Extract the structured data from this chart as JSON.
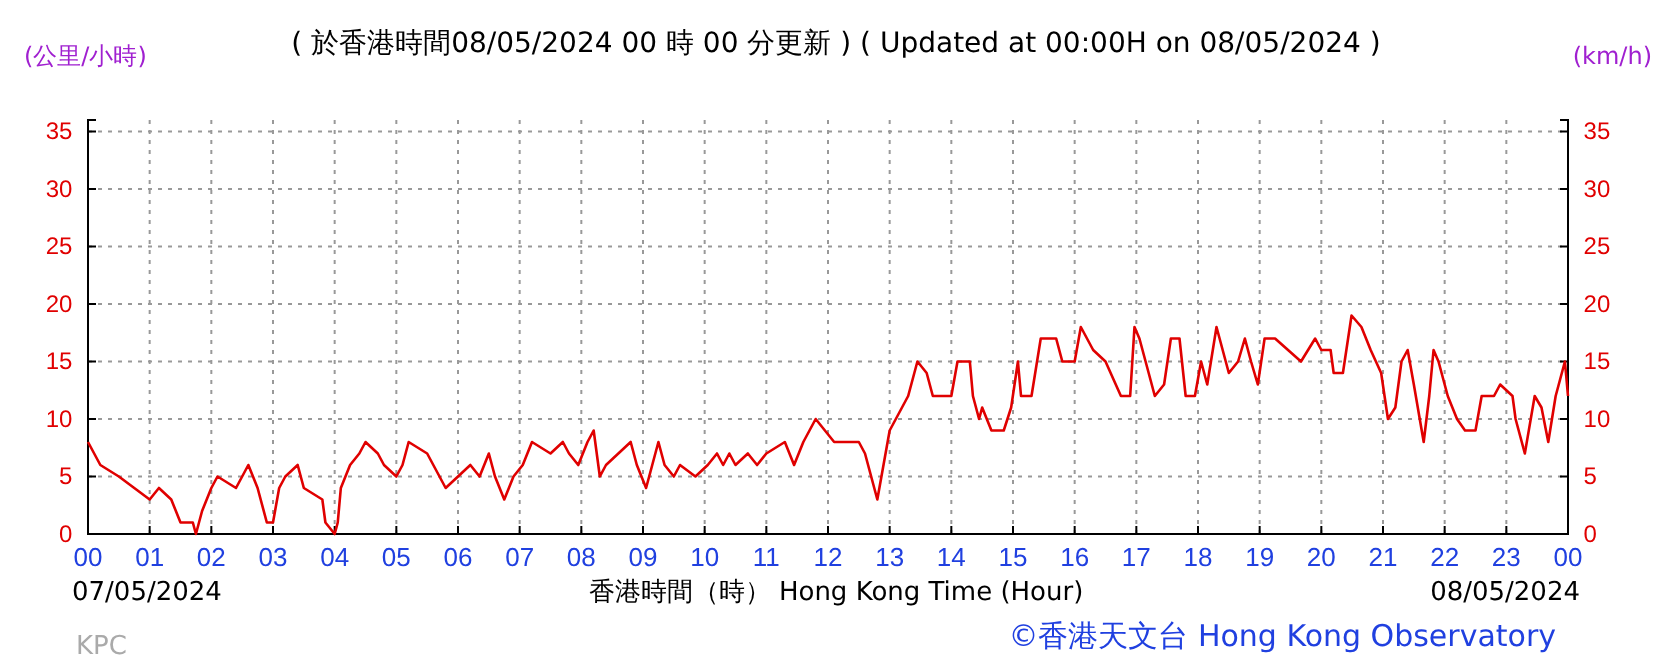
{
  "chart_data": {
    "type": "line",
    "title": "( 於香港時間08/05/2024 00 時 00 分更新 ) ( Updated at 00:00H on 08/05/2024 )",
    "ylabel": "(公里/小時)",
    "y2label": "(km/h)",
    "xlabel": "香港時間（時） Hong Kong Time (Hour)",
    "annotations": [
      "07/05/2024",
      "08/05/2024",
      "KPC",
      "©香港天文台 Hong Kong Observatory"
    ],
    "xlim": [
      0,
      24
    ],
    "xticks": [
      {
        "value": 0,
        "label": "00"
      },
      {
        "value": 1,
        "label": "01"
      },
      {
        "value": 2,
        "label": "02"
      },
      {
        "value": 3,
        "label": "03"
      },
      {
        "value": 4,
        "label": "04"
      },
      {
        "value": 5,
        "label": "05"
      },
      {
        "value": 6,
        "label": "06"
      },
      {
        "value": 7,
        "label": "07"
      },
      {
        "value": 8,
        "label": "08"
      },
      {
        "value": 9,
        "label": "09"
      },
      {
        "value": 10,
        "label": "10"
      },
      {
        "value": 11,
        "label": "11"
      },
      {
        "value": 12,
        "label": "12"
      },
      {
        "value": 13,
        "label": "13"
      },
      {
        "value": 14,
        "label": "14"
      },
      {
        "value": 15,
        "label": "15"
      },
      {
        "value": 16,
        "label": "16"
      },
      {
        "value": 17,
        "label": "17"
      },
      {
        "value": 18,
        "label": "18"
      },
      {
        "value": 19,
        "label": "19"
      },
      {
        "value": 20,
        "label": "20"
      },
      {
        "value": 21,
        "label": "21"
      },
      {
        "value": 22,
        "label": "22"
      },
      {
        "value": 23,
        "label": "23"
      },
      {
        "value": 24,
        "label": "00"
      }
    ],
    "ylim": [
      0,
      36
    ],
    "yticks": [
      0,
      5,
      10,
      15,
      20,
      25,
      30,
      35
    ],
    "y2lim": [
      0,
      36
    ],
    "y2ticks": [
      0,
      5,
      10,
      15,
      20,
      25,
      30,
      35
    ],
    "grid": true,
    "line_style": "solid",
    "series": [
      {
        "color": "#e00000",
        "x": [
          0,
          0.2,
          0.5,
          0.75,
          1,
          1.15,
          1.35,
          1.5,
          1.7,
          1.75,
          1.85,
          2,
          2.1,
          2.4,
          2.6,
          2.75,
          2.9,
          3,
          3.1,
          3.2,
          3.4,
          3.5,
          3.8,
          3.85,
          4,
          4.05,
          4.1,
          4.25,
          4.4,
          4.5,
          4.7,
          4.8,
          5,
          5.1,
          5.2,
          5.5,
          5.6,
          5.8,
          6,
          6.2,
          6.35,
          6.5,
          6.6,
          6.75,
          6.9,
          7.05,
          7.2,
          7.5,
          7.7,
          7.8,
          7.95,
          8.1,
          8.2,
          8.3,
          8.4,
          8.8,
          8.9,
          9.05,
          9.15,
          9.25,
          9.35,
          9.5,
          9.6,
          9.85,
          10.05,
          10.2,
          10.3,
          10.4,
          10.5,
          10.7,
          10.85,
          11,
          11.3,
          11.45,
          11.6,
          11.8,
          11.95,
          12.1,
          12.5,
          12.6,
          12.8,
          13,
          13.2,
          13.3,
          13.45,
          13.6,
          13.7,
          14,
          14.1,
          14.3,
          14.35,
          14.45,
          14.5,
          14.65,
          14.85,
          14.97,
          15.08,
          15.13,
          15.3,
          15.45,
          15.7,
          15.8,
          16,
          16.1,
          16.3,
          16.5,
          16.75,
          16.9,
          16.97,
          17.05,
          17.2,
          17.3,
          17.45,
          17.56,
          17.7,
          17.8,
          17.95,
          18.05,
          18.15,
          18.3,
          18.5,
          18.65,
          18.76,
          18.86,
          18.97,
          19.08,
          19.25,
          19.46,
          19.67,
          19.9,
          20,
          20.15,
          20.2,
          20.35,
          20.49,
          20.65,
          20.8,
          20.97,
          21.08,
          21.2,
          21.3,
          21.4,
          21.5,
          21.66,
          21.75,
          21.82,
          21.9,
          22.05,
          22.2,
          22.33,
          22.5,
          22.6,
          22.8,
          22.9,
          23.1,
          23.15,
          23.3,
          23.46,
          23.57,
          23.68,
          23.8,
          23.95,
          24
        ],
        "values": [
          8,
          6,
          5,
          4,
          3,
          4,
          3,
          1,
          1,
          0,
          2,
          4,
          5,
          4,
          6,
          4,
          1,
          1,
          4,
          5,
          6,
          4,
          3,
          1,
          0,
          1,
          4,
          6,
          7,
          8,
          7,
          6,
          5,
          6,
          8,
          7,
          6,
          4,
          5,
          6,
          5,
          7,
          5,
          3,
          5,
          6,
          8,
          7,
          8,
          7,
          6,
          8,
          9,
          5,
          6,
          8,
          6,
          4,
          6,
          8,
          6,
          5,
          6,
          5,
          6,
          7,
          6,
          7,
          6,
          7,
          6,
          7,
          8,
          6,
          8,
          10,
          9,
          8,
          8,
          7,
          3,
          9,
          11,
          12,
          15,
          14,
          12,
          12,
          15,
          15,
          12,
          10,
          11,
          9,
          9,
          11,
          15,
          12,
          12,
          17,
          17,
          15,
          15,
          18,
          16,
          15,
          12,
          12,
          18,
          17,
          14,
          12,
          13,
          17,
          17,
          12,
          12,
          15,
          13,
          18,
          14,
          15,
          17,
          15,
          13,
          17,
          17,
          16,
          15,
          17,
          16,
          16,
          14,
          14,
          19,
          18,
          16,
          14,
          10,
          11,
          15,
          16,
          13,
          8,
          12,
          16,
          15,
          12,
          10,
          9,
          9,
          12,
          12,
          13,
          12,
          10,
          7,
          12,
          11,
          8,
          12,
          15,
          12
        ]
      }
    ]
  }
}
